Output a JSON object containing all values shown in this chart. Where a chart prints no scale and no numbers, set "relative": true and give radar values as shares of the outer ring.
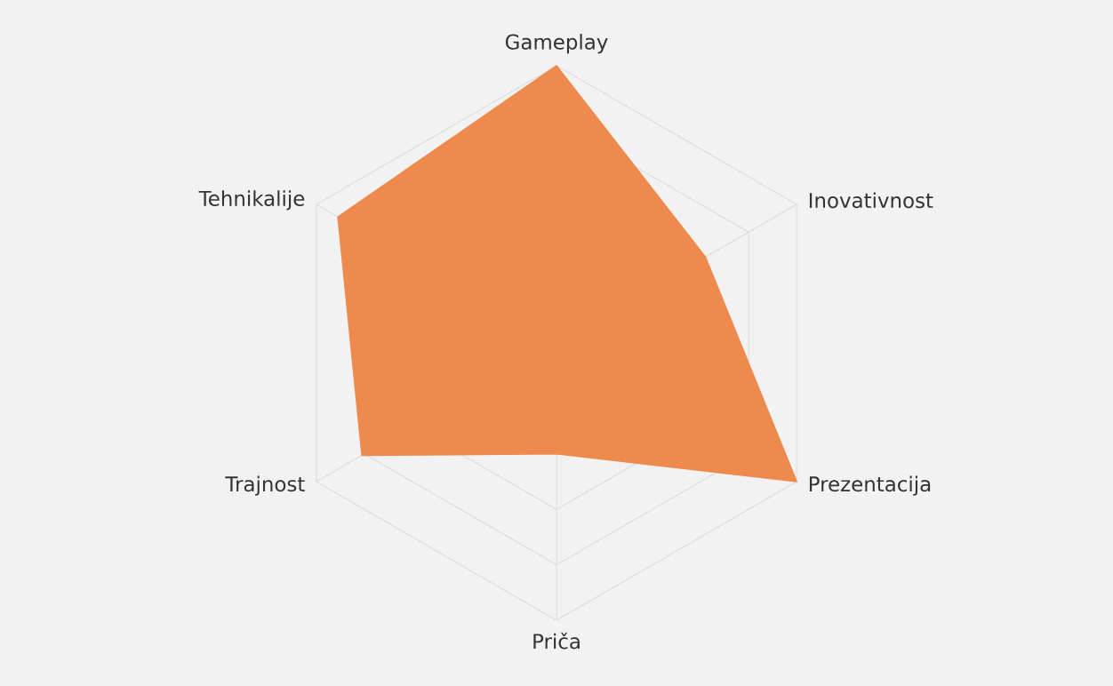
{
  "chart_data": {
    "type": "radar",
    "relative": true,
    "grid": true,
    "categories": [
      "Gameplay",
      "Inovativnost",
      "Prezentacija",
      "Priča",
      "Trajnost",
      "Tehnikalije"
    ],
    "series": [
      {
        "color": "#ef8a4e",
        "values": [
          1.0,
          0.62,
          1.0,
          0.4,
          0.81,
          0.91
        ]
      }
    ]
  }
}
